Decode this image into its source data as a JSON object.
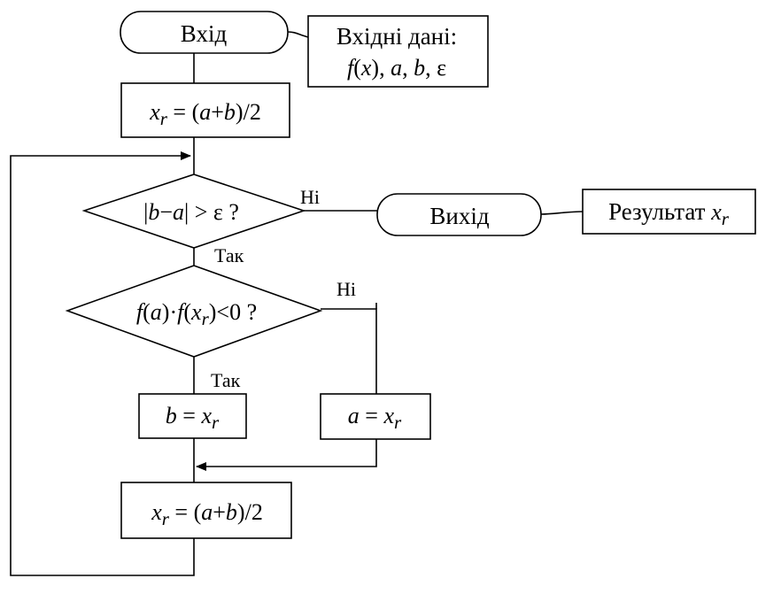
{
  "flowchart": {
    "start_label": "Вхід",
    "input_note": {
      "line1": "Вхідні дані:",
      "f": "f",
      "x": "x",
      "a": "a",
      "b": "b",
      "eps": "ε"
    },
    "init": {
      "var": "x",
      "sub": "r",
      "a": "a",
      "b": "b",
      "div": "2"
    },
    "condition1": {
      "b": "b",
      "a": "a",
      "eps": "ε",
      "q": "?",
      "yes": "Так",
      "no": "Ні"
    },
    "end_label": "Вихід",
    "result_note": {
      "text": "Результат ",
      "var": "x",
      "sub": "r"
    },
    "condition2": {
      "f": "f",
      "a": "a",
      "x": "x",
      "sub": "r",
      "zero": "0",
      "q": "?",
      "yes": "Так",
      "no": "Ні"
    },
    "assign_b": {
      "lhs": "b",
      "rhs": "x",
      "sub": "r"
    },
    "assign_a": {
      "lhs": "a",
      "rhs": "x",
      "sub": "r"
    },
    "update": {
      "var": "x",
      "sub": "r",
      "a": "a",
      "b": "b",
      "div": "2"
    }
  }
}
